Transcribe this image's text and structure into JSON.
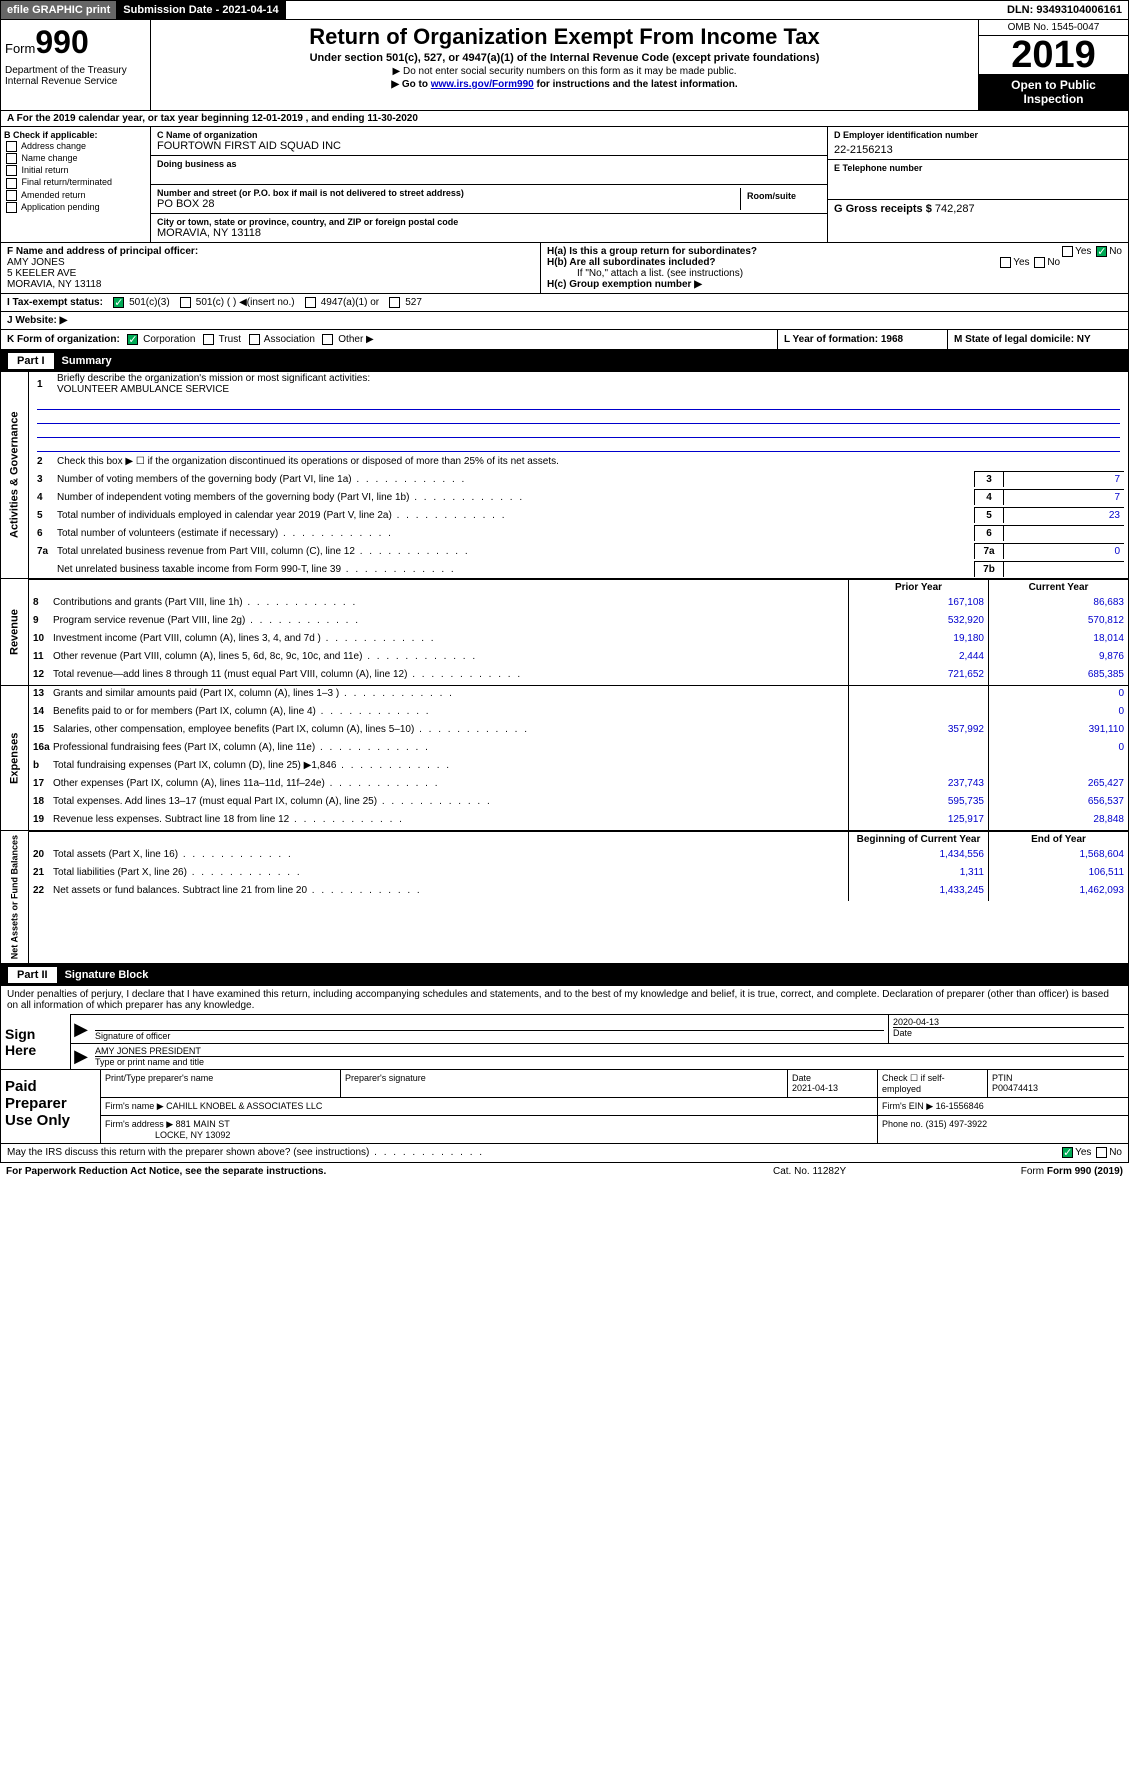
{
  "topbar": {
    "efile": "efile GRAPHIC print",
    "submission": "Submission Date - 2021-04-14",
    "dln": "DLN: 93493104006161"
  },
  "header": {
    "form_label": "Form",
    "form_num": "990",
    "dept": "Department of the Treasury\nInternal Revenue Service",
    "title": "Return of Organization Exempt From Income Tax",
    "subtitle": "Under section 501(c), 527, or 4947(a)(1) of the Internal Revenue Code (except private foundations)",
    "note1": "▶ Do not enter social security numbers on this form as it may be made public.",
    "note2_pre": "▶ Go to ",
    "note2_link": "www.irs.gov/Form990",
    "note2_post": " for instructions and the latest information.",
    "omb": "OMB No. 1545-0047",
    "year": "2019",
    "open": "Open to Public Inspection"
  },
  "period": "A For the 2019 calendar year, or tax year beginning 12-01-2019    , and ending 11-30-2020",
  "checkboxes": {
    "header": "B Check if applicable:",
    "items": [
      "Address change",
      "Name change",
      "Initial return",
      "Final return/terminated",
      "Amended return",
      "Application pending"
    ]
  },
  "org": {
    "c_label": "C Name of organization",
    "name": "FOURTOWN FIRST AID SQUAD INC",
    "dba_label": "Doing business as",
    "addr_label": "Number and street (or P.O. box if mail is not delivered to street address)",
    "room_label": "Room/suite",
    "addr": "PO BOX 28",
    "city_label": "City or town, state or province, country, and ZIP or foreign postal code",
    "city": "MORAVIA, NY  13118"
  },
  "right": {
    "d_label": "D Employer identification number",
    "ein": "22-2156213",
    "e_label": "E Telephone number",
    "g_label": "G Gross receipts $",
    "g_val": "742,287"
  },
  "officer": {
    "f_label": "F  Name and address of principal officer:",
    "name": "AMY JONES",
    "addr1": "5 KEELER AVE",
    "addr2": "MORAVIA, NY  13118"
  },
  "h_section": {
    "ha": "H(a)  Is this a group return for subordinates?",
    "hb": "H(b)  Are all subordinates included?",
    "hb_note": "If \"No,\" attach a list. (see instructions)",
    "hc": "H(c)  Group exemption number ▶"
  },
  "tax_status": {
    "i_label": "I  Tax-exempt status:",
    "opts": [
      "501(c)(3)",
      "501(c) (  ) ◀(insert no.)",
      "4947(a)(1) or",
      "527"
    ]
  },
  "website": {
    "j_label": "J  Website: ▶"
  },
  "k_row": {
    "k": "K Form of organization:",
    "k_opts": [
      "Corporation",
      "Trust",
      "Association",
      "Other ▶"
    ],
    "l": "L Year of formation: 1968",
    "m": "M State of legal domicile: NY"
  },
  "part1": {
    "label": "Part I",
    "title": "Summary"
  },
  "governance": {
    "side": "Activities & Governance",
    "q1": "Briefly describe the organization's mission or most significant activities:",
    "mission": "VOLUNTEER AMBULANCE SERVICE",
    "q2": "Check this box ▶ ☐  if the organization discontinued its operations or disposed of more than 25% of its net assets.",
    "lines": [
      {
        "n": "3",
        "t": "Number of voting members of the governing body (Part VI, line 1a)",
        "box": "3",
        "v": "7"
      },
      {
        "n": "4",
        "t": "Number of independent voting members of the governing body (Part VI, line 1b)",
        "box": "4",
        "v": "7"
      },
      {
        "n": "5",
        "t": "Total number of individuals employed in calendar year 2019 (Part V, line 2a)",
        "box": "5",
        "v": "23"
      },
      {
        "n": "6",
        "t": "Total number of volunteers (estimate if necessary)",
        "box": "6",
        "v": ""
      },
      {
        "n": "7a",
        "t": "Total unrelated business revenue from Part VIII, column (C), line 12",
        "box": "7a",
        "v": "0"
      },
      {
        "n": "",
        "t": "Net unrelated business taxable income from Form 990-T, line 39",
        "box": "7b",
        "v": ""
      }
    ]
  },
  "col_headers": {
    "prior": "Prior Year",
    "current": "Current Year",
    "begin": "Beginning of Current Year",
    "end": "End of Year"
  },
  "revenue": {
    "side": "Revenue",
    "lines": [
      {
        "n": "8",
        "t": "Contributions and grants (Part VIII, line 1h)",
        "p": "167,108",
        "c": "86,683"
      },
      {
        "n": "9",
        "t": "Program service revenue (Part VIII, line 2g)",
        "p": "532,920",
        "c": "570,812"
      },
      {
        "n": "10",
        "t": "Investment income (Part VIII, column (A), lines 3, 4, and 7d )",
        "p": "19,180",
        "c": "18,014"
      },
      {
        "n": "11",
        "t": "Other revenue (Part VIII, column (A), lines 5, 6d, 8c, 9c, 10c, and 11e)",
        "p": "2,444",
        "c": "9,876"
      },
      {
        "n": "12",
        "t": "Total revenue—add lines 8 through 11 (must equal Part VIII, column (A), line 12)",
        "p": "721,652",
        "c": "685,385"
      }
    ]
  },
  "expenses": {
    "side": "Expenses",
    "lines": [
      {
        "n": "13",
        "t": "Grants and similar amounts paid (Part IX, column (A), lines 1–3 )",
        "p": "",
        "c": "0"
      },
      {
        "n": "14",
        "t": "Benefits paid to or for members (Part IX, column (A), line 4)",
        "p": "",
        "c": "0"
      },
      {
        "n": "15",
        "t": "Salaries, other compensation, employee benefits (Part IX, column (A), lines 5–10)",
        "p": "357,992",
        "c": "391,110"
      },
      {
        "n": "16a",
        "t": "Professional fundraising fees (Part IX, column (A), line 11e)",
        "p": "",
        "c": "0"
      },
      {
        "n": "b",
        "t": "Total fundraising expenses (Part IX, column (D), line 25) ▶1,846",
        "p": "",
        "c": ""
      },
      {
        "n": "17",
        "t": "Other expenses (Part IX, column (A), lines 11a–11d, 11f–24e)",
        "p": "237,743",
        "c": "265,427"
      },
      {
        "n": "18",
        "t": "Total expenses. Add lines 13–17 (must equal Part IX, column (A), line 25)",
        "p": "595,735",
        "c": "656,537"
      },
      {
        "n": "19",
        "t": "Revenue less expenses. Subtract line 18 from line 12",
        "p": "125,917",
        "c": "28,848"
      }
    ]
  },
  "netassets": {
    "side": "Net Assets or Fund Balances",
    "lines": [
      {
        "n": "20",
        "t": "Total assets (Part X, line 16)",
        "p": "1,434,556",
        "c": "1,568,604"
      },
      {
        "n": "21",
        "t": "Total liabilities (Part X, line 26)",
        "p": "1,311",
        "c": "106,511"
      },
      {
        "n": "22",
        "t": "Net assets or fund balances. Subtract line 21 from line 20",
        "p": "1,433,245",
        "c": "1,462,093"
      }
    ]
  },
  "part2": {
    "label": "Part II",
    "title": "Signature Block"
  },
  "sig": {
    "declaration": "Under penalties of perjury, I declare that I have examined this return, including accompanying schedules and statements, and to the best of my knowledge and belief, it is true, correct, and complete. Declaration of preparer (other than officer) is based on all information of which preparer has any knowledge.",
    "sign_here": "Sign Here",
    "sig_officer": "Signature of officer",
    "date_val": "2020-04-13",
    "date_label": "Date",
    "name_title": "AMY JONES PRESIDENT",
    "type_label": "Type or print name and title"
  },
  "preparer": {
    "label": "Paid Preparer Use Only",
    "h1": "Print/Type preparer's name",
    "h2": "Preparer's signature",
    "h3": "Date",
    "date": "2021-04-13",
    "h4": "Check ☐ if self-employed",
    "h5": "PTIN",
    "ptin": "P00474413",
    "firm_name_label": "Firm's name    ▶",
    "firm_name": "CAHILL KNOBEL & ASSOCIATES LLC",
    "firm_ein_label": "Firm's EIN ▶",
    "firm_ein": "16-1556846",
    "firm_addr_label": "Firm's address ▶",
    "firm_addr": "881 MAIN ST",
    "firm_city": "LOCKE, NY  13092",
    "phone_label": "Phone no.",
    "phone": "(315) 497-3922"
  },
  "footer": {
    "discuss": "May the IRS discuss this return with the preparer shown above? (see instructions)",
    "paperwork": "For Paperwork Reduction Act Notice, see the separate instructions.",
    "cat": "Cat. No. 11282Y",
    "form": "Form 990 (2019)"
  }
}
